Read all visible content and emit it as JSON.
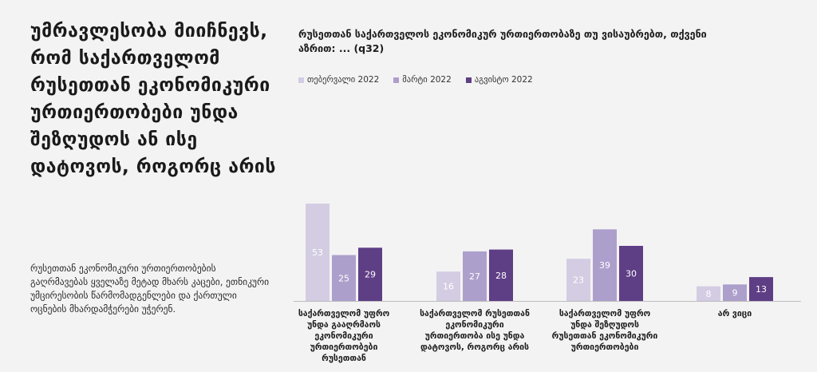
{
  "left_panel": {
    "title": "უმრავლესობა მიიჩნევს, რომ საქართველომ რუსეთთან ეკონომიკური ურთიერთობები უნდა შეზღუდოს ან ისე დატოვოს, როგორც არის",
    "description": "რუსეთთან ეკონომიკური ურთიერთობების გაღრმავებას ყველაზე მეტად მხარს კაცები, ეთნიკური უმცირესობის წარმომადგენლები და ქართული ოცნების მხარდამჭერები უჭერენ."
  },
  "chart_data": {
    "type": "bar",
    "title": "რუსეთთან საქართველოს ეკონომიკურ ურთიერთობაზე თუ ვისაუბრებთ, თქვენი აზრით: ... (q32)",
    "categories": [
      "საქართველომ უფრო უნდა გააღრმაოს ეკონომიკური ურთიერთობები რუსეთთან",
      "საქართველომ რუსეთთან ეკონომიკური ურთიერთობა ისე უნდა დატოვოს, როგორც არის",
      "საქართველომ უფრო უნდა შეზღუდოს რუსეთთან ეკონომიკური ურთიერთობები",
      "არ ვიცი"
    ],
    "series": [
      {
        "name": "თებერვალი 2022",
        "values": [
          53,
          16,
          23,
          8
        ],
        "color": "#d3cce2"
      },
      {
        "name": "მარტი 2022",
        "values": [
          25,
          27,
          39,
          9
        ],
        "color": "#ad9fcb"
      },
      {
        "name": "აგვისტო 2022",
        "values": [
          29,
          28,
          30,
          13
        ],
        "color": "#5e3e85"
      }
    ],
    "ylim": [
      0,
      60
    ],
    "grid": false,
    "legend_position": "top-left"
  }
}
